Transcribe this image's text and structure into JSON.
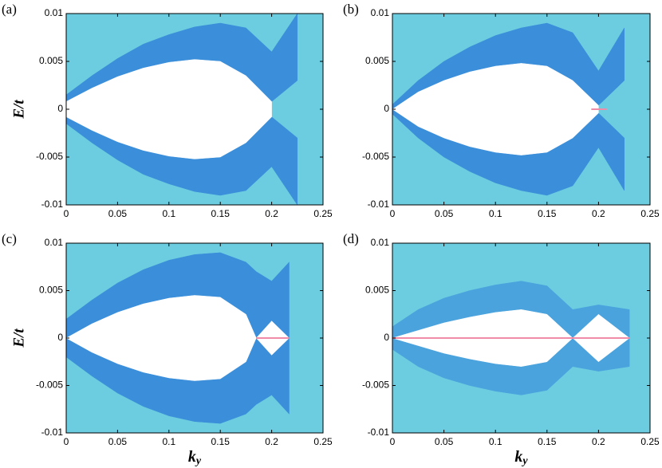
{
  "chart_data": [
    {
      "type": "band",
      "panel_label": "(a)",
      "ylabel": "E/t",
      "xlim": [
        0,
        0.25
      ],
      "xticks": [
        0,
        0.05,
        0.1,
        0.15,
        0.2,
        0.25
      ],
      "ylim": [
        -0.01,
        0.01
      ],
      "yticks": [
        0.01,
        0.005,
        0,
        -0.005,
        -0.01
      ],
      "background_color": "#6ccde0",
      "x": [
        0,
        0.025,
        0.05,
        0.075,
        0.1,
        0.125,
        0.15,
        0.175,
        0.2,
        0.225,
        0.25
      ],
      "gap": {
        "color": "#ffffff",
        "upper": [
          0.0008,
          0.0022,
          0.0034,
          0.0043,
          0.0049,
          0.0052,
          0.005,
          0.0035,
          0.0008,
          null,
          null
        ],
        "lower": [
          -0.0008,
          -0.0022,
          -0.0034,
          -0.0043,
          -0.0049,
          -0.0052,
          -0.005,
          -0.0035,
          -0.0008,
          null,
          null
        ]
      },
      "bands": [
        {
          "color": "#3b8fda",
          "lower": [
            0.0008,
            0.0022,
            0.0034,
            0.0043,
            0.0049,
            0.0052,
            0.005,
            0.0035,
            0.0008,
            0.003,
            null
          ],
          "upper": [
            0.0015,
            0.0035,
            0.0053,
            0.0068,
            0.0078,
            0.0086,
            0.009,
            0.0085,
            0.006,
            0.01,
            null
          ]
        },
        {
          "color": "#3b8fda",
          "lower": [
            -0.0015,
            -0.0035,
            -0.0053,
            -0.0068,
            -0.0078,
            -0.0086,
            -0.009,
            -0.0085,
            -0.006,
            -0.01,
            null
          ],
          "upper": [
            -0.0008,
            -0.0022,
            -0.0034,
            -0.0043,
            -0.0049,
            -0.0052,
            -0.005,
            -0.0035,
            -0.0008,
            -0.003,
            null
          ]
        }
      ]
    },
    {
      "type": "band",
      "panel_label": "(b)",
      "xlim": [
        0,
        0.25
      ],
      "xticks": [
        0,
        0.05,
        0.1,
        0.15,
        0.2,
        0.25
      ],
      "ylim": [
        -0.01,
        0.01
      ],
      "yticks": [
        0.01,
        0.005,
        0,
        -0.005,
        -0.01
      ],
      "background_color": "#6ccde0",
      "x": [
        0,
        0.025,
        0.05,
        0.075,
        0.1,
        0.125,
        0.15,
        0.175,
        0.2,
        0.225,
        0.25
      ],
      "gap": {
        "color": "#ffffff",
        "upper": [
          0,
          0.0018,
          0.003,
          0.0039,
          0.0045,
          0.0048,
          0.0045,
          0.003,
          0.0004,
          null,
          null
        ],
        "lower": [
          0,
          -0.0018,
          -0.003,
          -0.0039,
          -0.0045,
          -0.0048,
          -0.0045,
          -0.003,
          -0.0004,
          null,
          null
        ]
      },
      "bands": [
        {
          "color": "#3b8fda",
          "lower": [
            0,
            0.0018,
            0.003,
            0.0039,
            0.0045,
            0.0048,
            0.0045,
            0.003,
            0.0004,
            0.003,
            null
          ],
          "upper": [
            0.0005,
            0.003,
            0.005,
            0.0065,
            0.0077,
            0.0085,
            0.009,
            0.008,
            0.004,
            0.0085,
            null
          ]
        },
        {
          "color": "#3b8fda",
          "lower": [
            -0.0005,
            -0.003,
            -0.005,
            -0.0065,
            -0.0077,
            -0.0085,
            -0.009,
            -0.008,
            -0.004,
            -0.0085,
            null
          ],
          "upper": [
            0,
            -0.0018,
            -0.003,
            -0.0039,
            -0.0045,
            -0.0048,
            -0.0045,
            -0.003,
            -0.0004,
            -0.003,
            null
          ]
        }
      ],
      "zero_mode": {
        "color": "#f08ca8",
        "x": [
          0.193,
          0.208
        ],
        "values": [
          0,
          0
        ]
      }
    },
    {
      "type": "band",
      "panel_label": "(c)",
      "ylabel": "E/t",
      "xlabel": {
        "main": "k",
        "sub": "y"
      },
      "xlim": [
        0,
        0.25
      ],
      "xticks": [
        0,
        0.05,
        0.1,
        0.15,
        0.2,
        0.25
      ],
      "ylim": [
        -0.01,
        0.01
      ],
      "yticks": [
        0.01,
        0.005,
        0,
        -0.005,
        -0.01
      ],
      "background_color": "#6ccde0",
      "x": [
        0,
        0.025,
        0.05,
        0.075,
        0.1,
        0.125,
        0.15,
        0.175,
        0.185,
        0.2,
        0.217,
        0.25
      ],
      "gap": {
        "color": "#ffffff",
        "upper": [
          0,
          0.0015,
          0.0027,
          0.0036,
          0.0042,
          0.0045,
          0.0043,
          0.0025,
          0,
          0.0018,
          0,
          null
        ],
        "lower": [
          0,
          -0.0015,
          -0.0027,
          -0.0036,
          -0.0042,
          -0.0045,
          -0.0043,
          -0.0025,
          0,
          -0.0018,
          0,
          null
        ]
      },
      "bands": [
        {
          "color": "#3b8fda",
          "lower": [
            0,
            0.0015,
            0.0027,
            0.0036,
            0.0042,
            0.0045,
            0.0043,
            0.0025,
            0,
            0.0018,
            0,
            null
          ],
          "upper": [
            0.002,
            0.004,
            0.0058,
            0.0072,
            0.0082,
            0.0088,
            0.009,
            0.008,
            0.007,
            0.006,
            0.008,
            null
          ]
        },
        {
          "color": "#3b8fda",
          "lower": [
            -0.002,
            -0.004,
            -0.0058,
            -0.0072,
            -0.0082,
            -0.0088,
            -0.009,
            -0.008,
            -0.007,
            -0.006,
            -0.008,
            null
          ],
          "upper": [
            0,
            -0.0015,
            -0.0027,
            -0.0036,
            -0.0042,
            -0.0045,
            -0.0043,
            -0.0025,
            0,
            -0.0018,
            0,
            null
          ]
        }
      ],
      "zero_mode": {
        "color": "#f08ca8",
        "x": [
          0.185,
          0.217
        ],
        "values": [
          0,
          0
        ]
      }
    },
    {
      "type": "band",
      "panel_label": "(d)",
      "xlabel": {
        "main": "k",
        "sub": "y"
      },
      "xlim": [
        0,
        0.25
      ],
      "xticks": [
        0,
        0.05,
        0.1,
        0.15,
        0.2,
        0.25
      ],
      "ylim": [
        -0.01,
        0.01
      ],
      "yticks": [
        0.01,
        0.005,
        0,
        -0.005,
        -0.01
      ],
      "background_color": "#6ccde0",
      "x": [
        0,
        0.025,
        0.05,
        0.075,
        0.1,
        0.125,
        0.15,
        0.175,
        0.2,
        0.23,
        0.25
      ],
      "gap": {
        "color": "#ffffff",
        "upper": [
          0,
          0.0008,
          0.0016,
          0.0022,
          0.0027,
          0.003,
          0.0025,
          0,
          0.0025,
          0,
          null
        ],
        "lower": [
          0,
          -0.0008,
          -0.0016,
          -0.0022,
          -0.0027,
          -0.003,
          -0.0025,
          0,
          -0.0025,
          0,
          null
        ]
      },
      "bands": [
        {
          "color": "#4aa3dd",
          "lower": [
            0,
            0.0008,
            0.0016,
            0.0022,
            0.0027,
            0.003,
            0.0025,
            0,
            0.0025,
            0,
            null
          ],
          "upper": [
            0.0012,
            0.003,
            0.0042,
            0.005,
            0.0056,
            0.006,
            0.0055,
            0.003,
            0.0035,
            0.003,
            null
          ]
        },
        {
          "color": "#4aa3dd",
          "lower": [
            -0.0012,
            -0.003,
            -0.0042,
            -0.005,
            -0.0056,
            -0.006,
            -0.0055,
            -0.003,
            -0.0035,
            -0.003,
            null
          ],
          "upper": [
            0,
            -0.0008,
            -0.0016,
            -0.0022,
            -0.0027,
            -0.003,
            -0.0025,
            0,
            -0.0025,
            0,
            null
          ]
        }
      ],
      "zero_mode": {
        "color": "#f08ca8",
        "x": [
          0,
          0.23
        ],
        "values": [
          0,
          0
        ]
      }
    }
  ]
}
